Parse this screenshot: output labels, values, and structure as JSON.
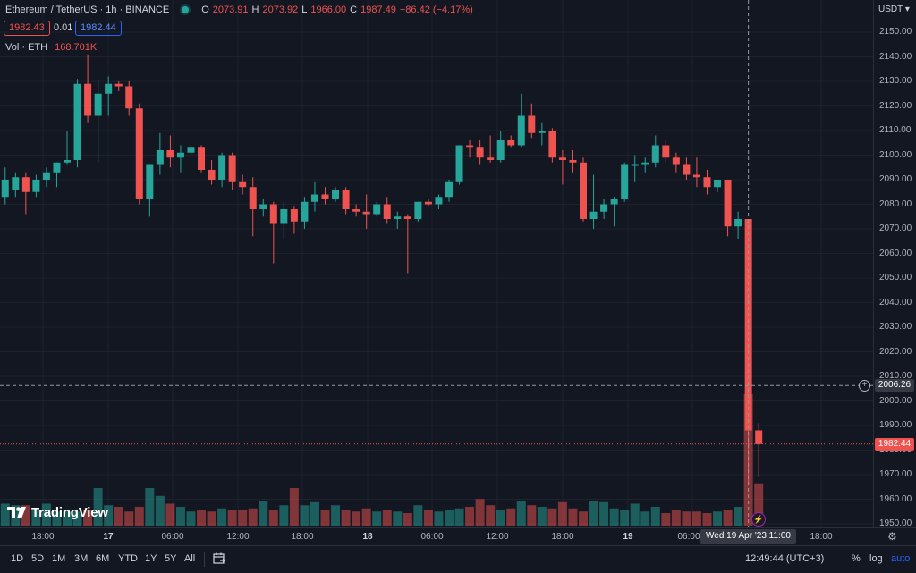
{
  "legend": {
    "symbol": "Ethereum / TetherUS · 1h · BINANCE",
    "o_label": "O",
    "o_value": "2073.91",
    "h_label": "H",
    "h_value": "2073.92",
    "l_label": "L",
    "l_value": "1966.00",
    "c_label": "C",
    "c_value": "1987.49",
    "change": "−86.42 (−4.17%)",
    "bid": "1982.43",
    "spread": "0.01",
    "ask": "1982.44",
    "vol_label": "Vol · ETH",
    "vol_value": "168.701K"
  },
  "price_axis": {
    "currency": "USDT",
    "ticks": [
      "2150.00",
      "2140.00",
      "2130.00",
      "2120.00",
      "2110.00",
      "2100.00",
      "2090.00",
      "2080.00",
      "2070.00",
      "2060.00",
      "2050.00",
      "2040.00",
      "2030.00",
      "2020.00",
      "2010.00",
      "2000.00",
      "1990.00",
      "1980.00",
      "1970.00",
      "1960.00",
      "1950.00"
    ],
    "crosshair_price": "2006.26",
    "last_price": "1982.44"
  },
  "time_axis": {
    "labels": [
      "18:00",
      "17",
      "06:00",
      "12:00",
      "18:00",
      "18",
      "06:00",
      "12:00",
      "18:00",
      "19",
      "06:00",
      "18:00"
    ],
    "crosshair_time": "Wed 19 Apr '23   11:00"
  },
  "bottom_bar": {
    "ranges": [
      "1D",
      "5D",
      "1M",
      "3M",
      "6M",
      "YTD",
      "1Y",
      "5Y",
      "All"
    ],
    "clock": "12:49:44 (UTC+3)",
    "percent": "%",
    "log": "log",
    "auto": "auto"
  },
  "branding": "TradingView",
  "colors": {
    "up": "#26a69a",
    "down": "#ef5350",
    "background": "#131722",
    "crosshair": "#9598a1"
  },
  "chart_data": {
    "type": "candlestick",
    "symbol": "ETH/USDT",
    "interval": "1h",
    "ylim": [
      1948,
      2155
    ],
    "candles": [
      {
        "o": 2083,
        "h": 2095,
        "l": 2080,
        "c": 2090
      },
      {
        "o": 2086,
        "h": 2093,
        "l": 2083,
        "c": 2091
      },
      {
        "o": 2091,
        "h": 2093,
        "l": 2076,
        "c": 2085
      },
      {
        "o": 2085,
        "h": 2092,
        "l": 2083,
        "c": 2090
      },
      {
        "o": 2090,
        "h": 2095,
        "l": 2087,
        "c": 2093
      },
      {
        "o": 2093,
        "h": 2097,
        "l": 2087,
        "c": 2097
      },
      {
        "o": 2097,
        "h": 2110,
        "l": 2096,
        "c": 2098
      },
      {
        "o": 2098,
        "h": 2131,
        "l": 2095,
        "c": 2129
      },
      {
        "o": 2129,
        "h": 2141,
        "l": 2113,
        "c": 2116
      },
      {
        "o": 2116,
        "h": 2131,
        "l": 2097,
        "c": 2125
      },
      {
        "o": 2125,
        "h": 2132,
        "l": 2116,
        "c": 2129
      },
      {
        "o": 2129,
        "h": 2130,
        "l": 2126,
        "c": 2128
      },
      {
        "o": 2128,
        "h": 2130,
        "l": 2116,
        "c": 2119
      },
      {
        "o": 2119,
        "h": 2121,
        "l": 2080,
        "c": 2082
      },
      {
        "o": 2082,
        "h": 2096,
        "l": 2075,
        "c": 2096
      },
      {
        "o": 2096,
        "h": 2109,
        "l": 2092,
        "c": 2102
      },
      {
        "o": 2102,
        "h": 2108,
        "l": 2095,
        "c": 2099
      },
      {
        "o": 2099,
        "h": 2104,
        "l": 2093,
        "c": 2101
      },
      {
        "o": 2101,
        "h": 2104,
        "l": 2098,
        "c": 2103
      },
      {
        "o": 2103,
        "h": 2104,
        "l": 2093,
        "c": 2094
      },
      {
        "o": 2094,
        "h": 2098,
        "l": 2088,
        "c": 2090
      },
      {
        "o": 2090,
        "h": 2101,
        "l": 2087,
        "c": 2100
      },
      {
        "o": 2100,
        "h": 2101,
        "l": 2086,
        "c": 2089
      },
      {
        "o": 2089,
        "h": 2092,
        "l": 2084,
        "c": 2087
      },
      {
        "o": 2087,
        "h": 2091,
        "l": 2067,
        "c": 2078
      },
      {
        "o": 2078,
        "h": 2082,
        "l": 2075,
        "c": 2080
      },
      {
        "o": 2080,
        "h": 2081,
        "l": 2056,
        "c": 2072
      },
      {
        "o": 2072,
        "h": 2081,
        "l": 2066,
        "c": 2078
      },
      {
        "o": 2078,
        "h": 2079,
        "l": 2068,
        "c": 2073
      },
      {
        "o": 2073,
        "h": 2083,
        "l": 2070,
        "c": 2081
      },
      {
        "o": 2081,
        "h": 2089,
        "l": 2077,
        "c": 2084
      },
      {
        "o": 2084,
        "h": 2087,
        "l": 2080,
        "c": 2082
      },
      {
        "o": 2082,
        "h": 2087,
        "l": 2081,
        "c": 2086
      },
      {
        "o": 2086,
        "h": 2087,
        "l": 2076,
        "c": 2078
      },
      {
        "o": 2078,
        "h": 2080,
        "l": 2075,
        "c": 2077
      },
      {
        "o": 2077,
        "h": 2084,
        "l": 2070,
        "c": 2076
      },
      {
        "o": 2076,
        "h": 2081,
        "l": 2075,
        "c": 2080
      },
      {
        "o": 2080,
        "h": 2083,
        "l": 2072,
        "c": 2074
      },
      {
        "o": 2074,
        "h": 2077,
        "l": 2070,
        "c": 2075
      },
      {
        "o": 2075,
        "h": 2076,
        "l": 2052,
        "c": 2074
      },
      {
        "o": 2074,
        "h": 2081,
        "l": 2073,
        "c": 2081
      },
      {
        "o": 2081,
        "h": 2082,
        "l": 2079,
        "c": 2080
      },
      {
        "o": 2080,
        "h": 2084,
        "l": 2078,
        "c": 2083
      },
      {
        "o": 2083,
        "h": 2090,
        "l": 2081,
        "c": 2089
      },
      {
        "o": 2089,
        "h": 2104,
        "l": 2088,
        "c": 2104
      },
      {
        "o": 2104,
        "h": 2106,
        "l": 2099,
        "c": 2103
      },
      {
        "o": 2103,
        "h": 2106,
        "l": 2096,
        "c": 2099
      },
      {
        "o": 2099,
        "h": 2108,
        "l": 2097,
        "c": 2098
      },
      {
        "o": 2098,
        "h": 2110,
        "l": 2097,
        "c": 2106
      },
      {
        "o": 2106,
        "h": 2108,
        "l": 2103,
        "c": 2104
      },
      {
        "o": 2104,
        "h": 2125,
        "l": 2103,
        "c": 2116
      },
      {
        "o": 2116,
        "h": 2121,
        "l": 2107,
        "c": 2109
      },
      {
        "o": 2109,
        "h": 2113,
        "l": 2104,
        "c": 2110
      },
      {
        "o": 2110,
        "h": 2111,
        "l": 2097,
        "c": 2099
      },
      {
        "o": 2099,
        "h": 2102,
        "l": 2088,
        "c": 2098
      },
      {
        "o": 2098,
        "h": 2102,
        "l": 2093,
        "c": 2097
      },
      {
        "o": 2097,
        "h": 2099,
        "l": 2073,
        "c": 2074
      },
      {
        "o": 2074,
        "h": 2092,
        "l": 2070,
        "c": 2077
      },
      {
        "o": 2077,
        "h": 2082,
        "l": 2074,
        "c": 2080
      },
      {
        "o": 2080,
        "h": 2083,
        "l": 2071,
        "c": 2082
      },
      {
        "o": 2082,
        "h": 2097,
        "l": 2081,
        "c": 2096
      },
      {
        "o": 2096,
        "h": 2100,
        "l": 2089,
        "c": 2096
      },
      {
        "o": 2096,
        "h": 2099,
        "l": 2093,
        "c": 2097
      },
      {
        "o": 2097,
        "h": 2108,
        "l": 2095,
        "c": 2104
      },
      {
        "o": 2104,
        "h": 2106,
        "l": 2097,
        "c": 2099
      },
      {
        "o": 2099,
        "h": 2101,
        "l": 2093,
        "c": 2096
      },
      {
        "o": 2096,
        "h": 2099,
        "l": 2090,
        "c": 2092
      },
      {
        "o": 2092,
        "h": 2099,
        "l": 2087,
        "c": 2091
      },
      {
        "o": 2091,
        "h": 2094,
        "l": 2084,
        "c": 2087
      },
      {
        "o": 2087,
        "h": 2090,
        "l": 2085,
        "c": 2090
      },
      {
        "o": 2090,
        "h": 2090,
        "l": 2067,
        "c": 2071
      },
      {
        "o": 2071,
        "h": 2077,
        "l": 2066,
        "c": 2074
      },
      {
        "o": 2074,
        "h": 2074,
        "l": 1966,
        "c": 1988
      },
      {
        "o": 1988,
        "h": 1991,
        "l": 1969,
        "c": 1982.44
      }
    ],
    "volume": [
      14,
      13,
      13,
      10,
      14,
      9,
      9,
      9,
      10,
      24,
      13,
      12,
      9,
      12,
      24,
      19,
      14,
      12,
      9,
      10,
      9,
      11,
      10,
      10,
      11,
      16,
      10,
      13,
      24,
      13,
      15,
      10,
      13,
      10,
      9,
      11,
      9,
      10,
      9,
      8,
      13,
      10,
      9,
      10,
      11,
      12,
      17,
      13,
      10,
      11,
      16,
      13,
      12,
      11,
      15,
      11,
      9,
      16,
      15,
      11,
      10,
      14,
      9,
      12,
      8,
      10,
      9,
      9,
      8,
      9,
      10,
      12,
      200,
      27
    ]
  }
}
